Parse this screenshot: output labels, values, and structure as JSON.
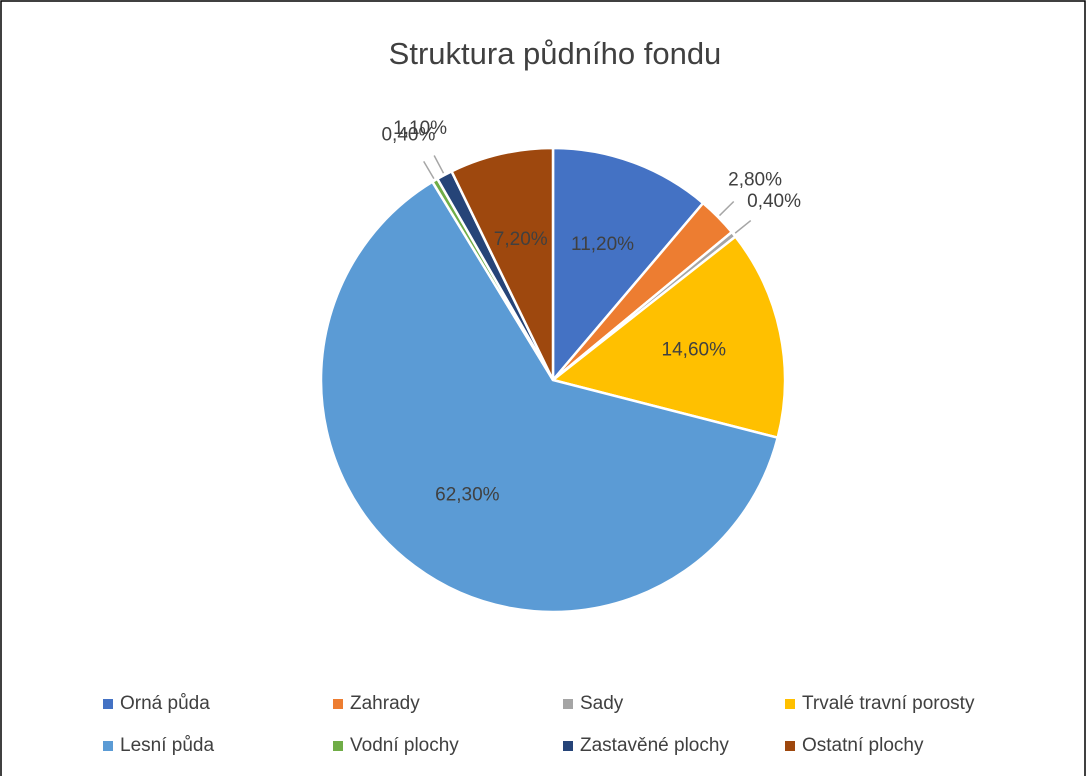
{
  "chart_data": {
    "type": "pie",
    "title": "Struktura půdního fondu",
    "categories": [
      "Orná půda",
      "Zahrady",
      "Sady",
      "Trvalé travní porosty",
      "Lesní půda",
      "Vodní plochy",
      "Zastavěné plochy",
      "Ostatní plochy"
    ],
    "values": [
      11.2,
      2.8,
      0.4,
      14.6,
      62.3,
      0.4,
      1.1,
      7.2
    ],
    "value_labels": [
      "11,20%",
      "2,80%",
      "0,40%",
      "14,60%",
      "62,30%",
      "0,40%",
      "1,10%",
      "7,20%"
    ],
    "colors": [
      "#4472c4",
      "#ed7d31",
      "#a5a5a5",
      "#ffc000",
      "#5b9bd5",
      "#70ad47",
      "#264478",
      "#9e480e"
    ],
    "legend": "bottom"
  }
}
